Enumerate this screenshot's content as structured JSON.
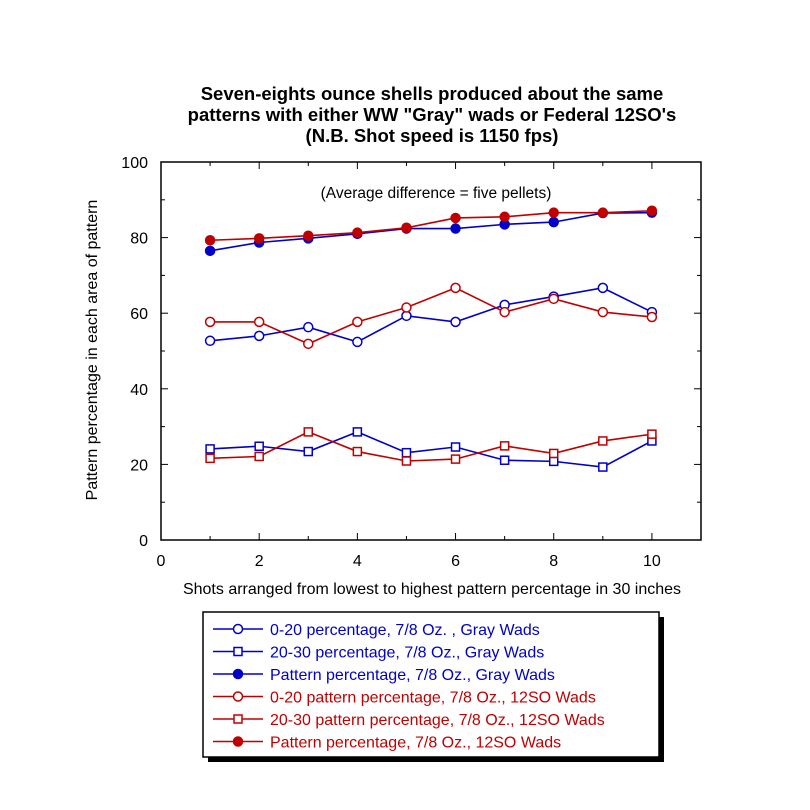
{
  "chart_data": {
    "type": "line",
    "title": "Seven-eights ounce shells produced about the same patterns with either WW \"Gray\" wads or Federal 12SO's (N.B. Shot speed is 1150 fps)",
    "title_lines": [
      "Seven-eights ounce shells produced about the same",
      "patterns with either WW \"Gray\" wads or Federal 12SO's",
      "(N.B. Shot speed is 1150 fps)"
    ],
    "xlabel": "Shots arranged from lowest to highest pattern percentage in 30 inches",
    "ylabel": "Pattern percentage in each area of pattern",
    "annotation": "(Average difference = five pellets)",
    "xlim": [
      0,
      11
    ],
    "ylim": [
      0,
      100
    ],
    "xticks": [
      0,
      2,
      4,
      6,
      8,
      10
    ],
    "yticks": [
      0,
      20,
      40,
      60,
      80,
      100
    ],
    "grid": false,
    "legend_position": "bottom",
    "x": [
      1,
      2,
      3,
      4,
      5,
      6,
      7,
      8,
      9,
      10
    ],
    "series": [
      {
        "name": "0-20 percentage, 7/8 Oz. , Gray Wads",
        "color": "#0000c8",
        "marker": "circle-open",
        "values": [
          52.7,
          54,
          56.3,
          52.4,
          59.3,
          57.7,
          62.2,
          64.4,
          66.7,
          60.3
        ]
      },
      {
        "name": "20-30 percentage, 7/8 Oz., Gray Wads",
        "color": "#0000c8",
        "marker": "square-open",
        "values": [
          24.1,
          24.8,
          23.4,
          28.6,
          23.1,
          24.6,
          21.1,
          20.8,
          19.3,
          26.2
        ]
      },
      {
        "name": "Pattern percentage, 7/8 Oz., Gray Wads",
        "color": "#0000c8",
        "marker": "circle-filled",
        "values": [
          76.5,
          78.7,
          79.8,
          81,
          82.4,
          82.4,
          83.5,
          84.1,
          86.5,
          86.6
        ]
      },
      {
        "name": "0-20 pattern percentage, 7/8 Oz., 12SO Wads",
        "color": "#c00000",
        "marker": "circle-open",
        "values": [
          57.7,
          57.7,
          51.9,
          57.7,
          61.5,
          66.7,
          60.3,
          63.8,
          60.3,
          59
        ]
      },
      {
        "name": "20-30 pattern percentage, 7/8 Oz., 12SO Wads",
        "color": "#c00000",
        "marker": "square-open",
        "values": [
          21.6,
          22.1,
          28.6,
          23.4,
          20.9,
          21.4,
          24.9,
          22.9,
          26.2,
          28
        ]
      },
      {
        "name": "Pattern percentage, 7/8 Oz., 12SO Wads",
        "color": "#c00000",
        "marker": "circle-filled",
        "values": [
          79.3,
          79.8,
          80.5,
          81.3,
          82.6,
          85.2,
          85.5,
          86.6,
          86.6,
          87.1
        ]
      }
    ]
  }
}
